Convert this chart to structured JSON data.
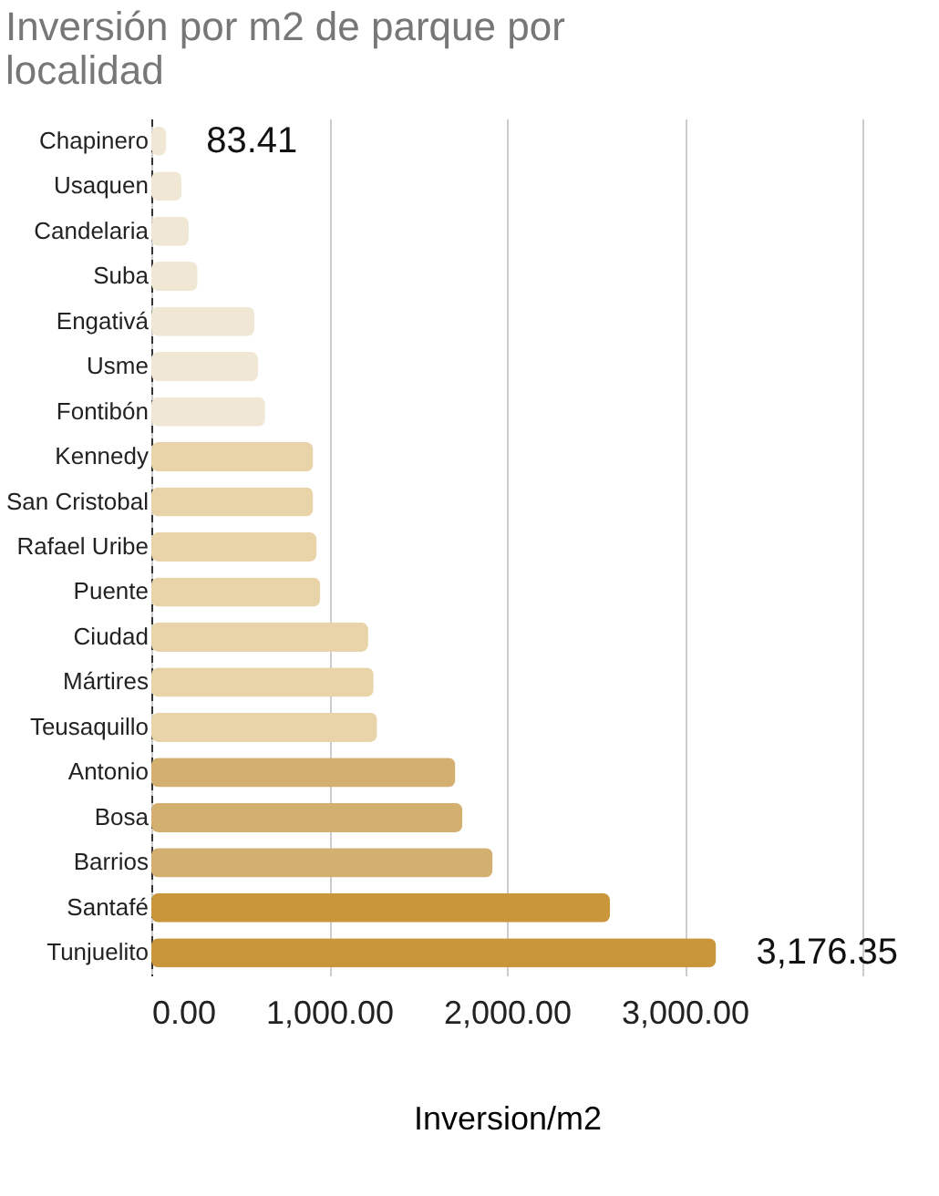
{
  "chart_data": {
    "type": "bar",
    "orientation": "horizontal",
    "title": "Inversión por m2 de parque por localidad",
    "xlabel": "Inversion/m2",
    "categories": [
      "Chapinero",
      "Usaquen",
      "Candelaria",
      "Suba",
      "Engativá",
      "Usme",
      "Fontibón",
      "Kennedy",
      "San Cristobal",
      "Rafael Uribe",
      "Puente",
      "Ciudad",
      "Mártires",
      "Teusaquillo",
      "Antonio",
      "Bosa",
      "Barrios",
      "Santafé",
      "Tunjuelito"
    ],
    "values": [
      83.41,
      170,
      210,
      260,
      580,
      600,
      640,
      910,
      910,
      930,
      950,
      1220,
      1250,
      1270,
      1710,
      1750,
      1920,
      2580,
      3176.35
    ],
    "colors": [
      "#f0e8d4",
      "#f0e8d4",
      "#f0e8d4",
      "#f0e8d4",
      "#f0e8d4",
      "#f0e8d4",
      "#f0e8d4",
      "#e8d4a8",
      "#e8d4a8",
      "#e8d4a8",
      "#e8d4a8",
      "#e8d4a8",
      "#e8d4a8",
      "#e8d4a8",
      "#d4b070",
      "#d4b070",
      "#d4b070",
      "#c9963c",
      "#c9963c"
    ],
    "value_labels": [
      "83.41",
      null,
      null,
      null,
      null,
      null,
      null,
      null,
      null,
      null,
      null,
      null,
      null,
      null,
      null,
      null,
      null,
      null,
      "3,176.35"
    ],
    "xlim": [
      0,
      4000
    ],
    "xticks": [
      {
        "value": 0,
        "label": "0.00"
      },
      {
        "value": 1000,
        "label": "1,000.00"
      },
      {
        "value": 2000,
        "label": "2,000.00"
      },
      {
        "value": 3000,
        "label": "3,000.00"
      },
      {
        "value": 4000,
        "label": null
      }
    ],
    "grid": "x"
  }
}
